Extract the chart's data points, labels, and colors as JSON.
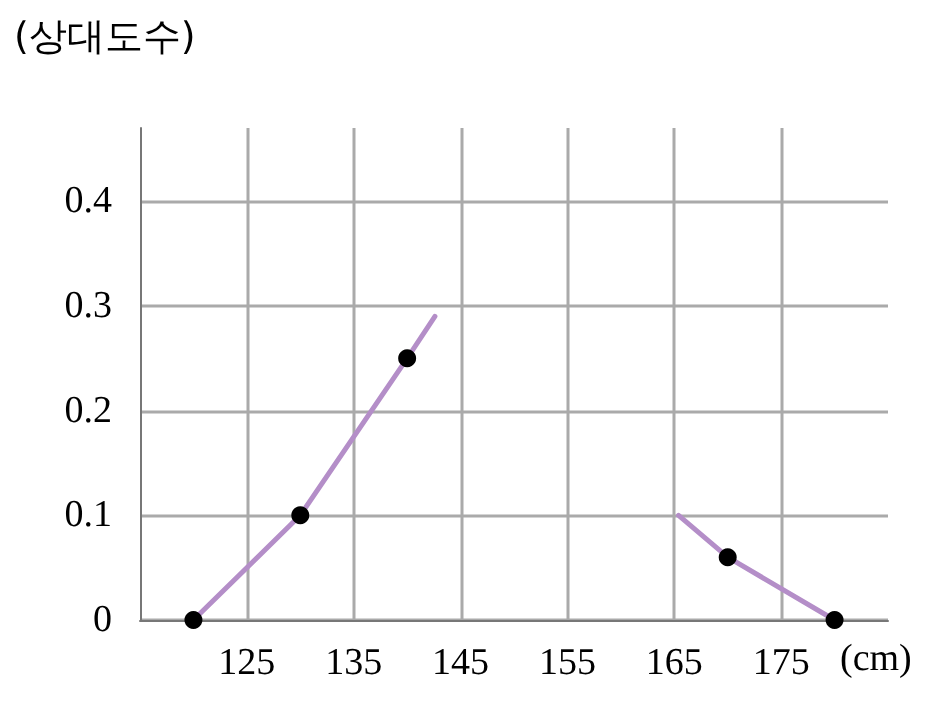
{
  "chart_data": {
    "type": "line",
    "ylabel": "(상대도수)",
    "xlabel": "(cm)",
    "xlim": [
      115,
      185
    ],
    "ylim": [
      0,
      0.47
    ],
    "xticks": [
      125,
      135,
      145,
      155,
      165,
      175
    ],
    "yticks": [
      0,
      0.1,
      0.2,
      0.3,
      0.4
    ],
    "grid": true,
    "series": [
      {
        "type": "line",
        "color": "#b48ec8",
        "marker": "none",
        "x": [
          120,
          130,
          140,
          142.6,
          null,
          165.4,
          170,
          180
        ],
        "values": [
          0,
          0.1,
          0.25,
          0.29,
          null,
          0.1,
          0.06,
          0
        ]
      },
      {
        "type": "scatter",
        "color": "#000000",
        "marker": "circle",
        "x": [
          120,
          130,
          140,
          170,
          180
        ],
        "values": [
          0,
          0.1,
          0.25,
          0.06,
          0
        ]
      }
    ]
  }
}
